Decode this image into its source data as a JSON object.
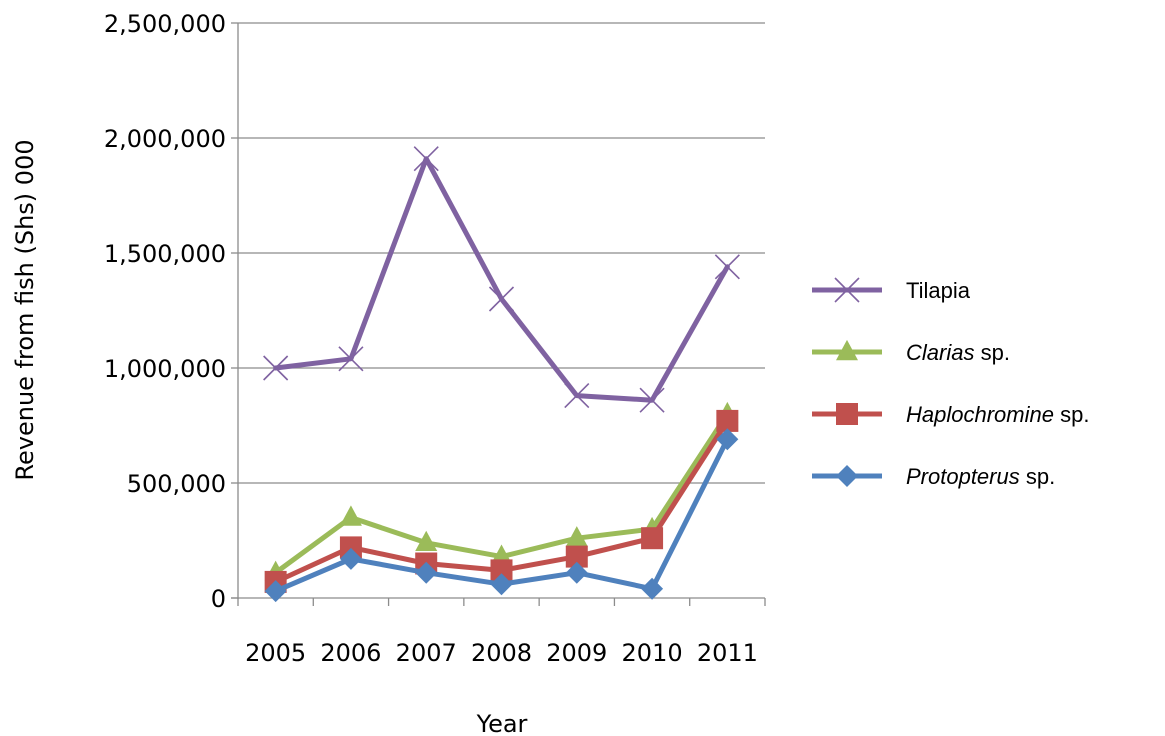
{
  "chart_data": {
    "type": "line",
    "xlabel": "Year",
    "ylabel": "Revenue from fish (Shs) 000",
    "categories": [
      "2005",
      "2006",
      "2007",
      "2008",
      "2009",
      "2010",
      "2011"
    ],
    "ylim": [
      0,
      2500000
    ],
    "yticks": [
      "0",
      "500,000",
      "1,000,000",
      "1,500,000",
      "2,000,000",
      "2,500,000"
    ],
    "grid": "horizontal",
    "legend_position": "right",
    "series": [
      {
        "name": "Tilapia",
        "name_italic": "",
        "name_suffix": "",
        "color": "#7f62a1",
        "marker": "x",
        "values": [
          1000000,
          1040000,
          1910000,
          1300000,
          880000,
          860000,
          1440000
        ]
      },
      {
        "name": "",
        "name_italic": "Clarias",
        "name_suffix": " sp.",
        "color": "#9bbb59",
        "marker": "triangle",
        "values": [
          110000,
          350000,
          240000,
          180000,
          260000,
          300000,
          800000
        ]
      },
      {
        "name": "",
        "name_italic": "Haplochromine",
        "name_suffix": " sp.",
        "color": "#c0504d",
        "marker": "square",
        "values": [
          70000,
          220000,
          150000,
          120000,
          180000,
          260000,
          770000
        ]
      },
      {
        "name": "",
        "name_italic": "Protopterus",
        "name_suffix": " sp.",
        "color": "#4f81bd",
        "marker": "diamond",
        "values": [
          30000,
          170000,
          110000,
          60000,
          110000,
          40000,
          690000
        ]
      }
    ]
  }
}
